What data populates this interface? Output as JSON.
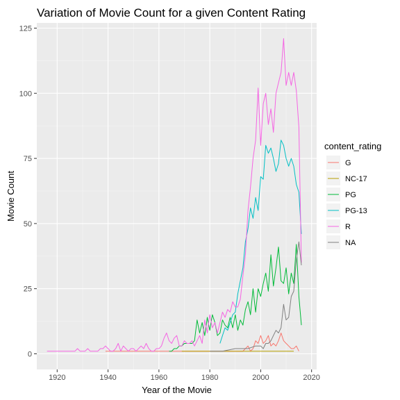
{
  "chart_data": {
    "type": "line",
    "title": "Variation of Movie Count for  a given Content Rating",
    "xlabel": "Year of the Movie",
    "ylabel": "Movie Count",
    "xlim": [
      1912,
      2022
    ],
    "ylim": [
      -6,
      127
    ],
    "x_ticks": [
      1920,
      1940,
      1960,
      1980,
      2000,
      2020
    ],
    "y_ticks": [
      0,
      25,
      50,
      75,
      100,
      125
    ],
    "grid": true,
    "legend": {
      "title": "content_rating",
      "placement": "right"
    },
    "series": [
      {
        "name": "G",
        "color": "#F8766D",
        "points": [
          [
            1939,
            1
          ],
          [
            1950,
            1
          ],
          [
            1960,
            1
          ],
          [
            1970,
            1
          ],
          [
            1977,
            1
          ],
          [
            1980,
            1
          ],
          [
            1985,
            1
          ],
          [
            1990,
            1
          ],
          [
            1993,
            1
          ],
          [
            1994,
            2
          ],
          [
            1995,
            3
          ],
          [
            1996,
            1
          ],
          [
            1997,
            2
          ],
          [
            1998,
            5
          ],
          [
            1999,
            4
          ],
          [
            2000,
            7
          ],
          [
            2001,
            4
          ],
          [
            2002,
            5
          ],
          [
            2003,
            7
          ],
          [
            2004,
            3
          ],
          [
            2005,
            4
          ],
          [
            2006,
            3
          ],
          [
            2007,
            5
          ],
          [
            2008,
            8
          ],
          [
            2009,
            5
          ],
          [
            2010,
            4
          ],
          [
            2011,
            3
          ],
          [
            2012,
            2
          ],
          [
            2013,
            2
          ],
          [
            2014,
            3
          ],
          [
            2015,
            1
          ]
        ]
      },
      {
        "name": "NC-17",
        "color": "#B79F00",
        "points": [
          [
            1969,
            1
          ],
          [
            1975,
            1
          ],
          [
            1990,
            1
          ],
          [
            1995,
            1
          ],
          [
            2000,
            1
          ],
          [
            2005,
            1
          ],
          [
            2010,
            1
          ],
          [
            2013,
            1
          ]
        ]
      },
      {
        "name": "PG",
        "color": "#00BA38",
        "points": [
          [
            1964,
            1
          ],
          [
            1965,
            1
          ],
          [
            1966,
            2
          ],
          [
            1967,
            2
          ],
          [
            1968,
            3
          ],
          [
            1969,
            3
          ],
          [
            1970,
            4
          ],
          [
            1971,
            4
          ],
          [
            1972,
            4
          ],
          [
            1973,
            4
          ],
          [
            1974,
            5
          ],
          [
            1975,
            13
          ],
          [
            1976,
            8
          ],
          [
            1977,
            12
          ],
          [
            1978,
            7
          ],
          [
            1979,
            14
          ],
          [
            1980,
            9
          ],
          [
            1981,
            15
          ],
          [
            1982,
            12
          ],
          [
            1983,
            7
          ],
          [
            1984,
            8
          ],
          [
            1985,
            13
          ],
          [
            1986,
            11
          ],
          [
            1987,
            10
          ],
          [
            1988,
            14
          ],
          [
            1989,
            10
          ],
          [
            1990,
            15
          ],
          [
            1991,
            9
          ],
          [
            1992,
            13
          ],
          [
            1993,
            11
          ],
          [
            1994,
            17
          ],
          [
            1995,
            20
          ],
          [
            1996,
            15
          ],
          [
            1997,
            25
          ],
          [
            1998,
            16
          ],
          [
            1999,
            25
          ],
          [
            2000,
            22
          ],
          [
            2001,
            27
          ],
          [
            2002,
            31
          ],
          [
            2003,
            24
          ],
          [
            2004,
            38
          ],
          [
            2005,
            26
          ],
          [
            2006,
            33
          ],
          [
            2007,
            41
          ],
          [
            2008,
            28
          ],
          [
            2009,
            27
          ],
          [
            2010,
            33
          ],
          [
            2011,
            23
          ],
          [
            2012,
            31
          ],
          [
            2013,
            27
          ],
          [
            2014,
            42
          ],
          [
            2015,
            22
          ],
          [
            2016,
            11
          ]
        ]
      },
      {
        "name": "PG-13",
        "color": "#00BFC4",
        "points": [
          [
            1984,
            4
          ],
          [
            1985,
            7
          ],
          [
            1986,
            10
          ],
          [
            1987,
            9
          ],
          [
            1988,
            12
          ],
          [
            1989,
            15
          ],
          [
            1990,
            16
          ],
          [
            1991,
            23
          ],
          [
            1992,
            28
          ],
          [
            1993,
            33
          ],
          [
            1994,
            43
          ],
          [
            1995,
            48
          ],
          [
            1996,
            56
          ],
          [
            1997,
            52
          ],
          [
            1998,
            60
          ],
          [
            1999,
            55
          ],
          [
            2000,
            68
          ],
          [
            2001,
            67
          ],
          [
            2002,
            80
          ],
          [
            2003,
            77
          ],
          [
            2004,
            79
          ],
          [
            2005,
            75
          ],
          [
            2006,
            70
          ],
          [
            2007,
            73
          ],
          [
            2008,
            82
          ],
          [
            2009,
            80
          ],
          [
            2010,
            75
          ],
          [
            2011,
            72
          ],
          [
            2012,
            75
          ],
          [
            2013,
            72
          ],
          [
            2014,
            65
          ],
          [
            2015,
            62
          ],
          [
            2016,
            46
          ]
        ]
      },
      {
        "name": "R",
        "color": "#F564E3",
        "points": [
          [
            1916,
            1
          ],
          [
            1920,
            1
          ],
          [
            1925,
            1
          ],
          [
            1927,
            1
          ],
          [
            1928,
            2
          ],
          [
            1929,
            1
          ],
          [
            1930,
            1
          ],
          [
            1931,
            1
          ],
          [
            1932,
            2
          ],
          [
            1933,
            1
          ],
          [
            1934,
            1
          ],
          [
            1935,
            1
          ],
          [
            1936,
            1
          ],
          [
            1937,
            2
          ],
          [
            1938,
            2
          ],
          [
            1939,
            3
          ],
          [
            1940,
            2
          ],
          [
            1941,
            1
          ],
          [
            1942,
            1
          ],
          [
            1943,
            2
          ],
          [
            1944,
            4
          ],
          [
            1945,
            1
          ],
          [
            1946,
            3
          ],
          [
            1947,
            2
          ],
          [
            1948,
            1
          ],
          [
            1949,
            2
          ],
          [
            1950,
            2
          ],
          [
            1951,
            1
          ],
          [
            1952,
            2
          ],
          [
            1953,
            3
          ],
          [
            1954,
            2
          ],
          [
            1955,
            4
          ],
          [
            1956,
            2
          ],
          [
            1957,
            1
          ],
          [
            1958,
            1
          ],
          [
            1959,
            2
          ],
          [
            1960,
            2
          ],
          [
            1961,
            3
          ],
          [
            1962,
            6
          ],
          [
            1963,
            8
          ],
          [
            1964,
            5
          ],
          [
            1965,
            4
          ],
          [
            1966,
            6
          ],
          [
            1967,
            7
          ],
          [
            1968,
            3
          ],
          [
            1969,
            3
          ],
          [
            1970,
            5
          ],
          [
            1971,
            4
          ],
          [
            1972,
            4
          ],
          [
            1973,
            5
          ],
          [
            1974,
            3
          ],
          [
            1975,
            5
          ],
          [
            1976,
            7
          ],
          [
            1977,
            4
          ],
          [
            1978,
            13
          ],
          [
            1979,
            8
          ],
          [
            1980,
            15
          ],
          [
            1981,
            10
          ],
          [
            1982,
            12
          ],
          [
            1983,
            8
          ],
          [
            1984,
            12
          ],
          [
            1985,
            16
          ],
          [
            1986,
            14
          ],
          [
            1987,
            17
          ],
          [
            1988,
            16
          ],
          [
            1989,
            20
          ],
          [
            1990,
            18
          ],
          [
            1991,
            18
          ],
          [
            1992,
            21
          ],
          [
            1993,
            30
          ],
          [
            1994,
            38
          ],
          [
            1995,
            55
          ],
          [
            1996,
            64
          ],
          [
            1997,
            75
          ],
          [
            1998,
            82
          ],
          [
            1999,
            102
          ],
          [
            2000,
            80
          ],
          [
            2001,
            96
          ],
          [
            2002,
            100
          ],
          [
            2003,
            88
          ],
          [
            2004,
            94
          ],
          [
            2005,
            85
          ],
          [
            2006,
            100
          ],
          [
            2007,
            104
          ],
          [
            2008,
            108
          ],
          [
            2009,
            121
          ],
          [
            2010,
            103
          ],
          [
            2011,
            108
          ],
          [
            2012,
            103
          ],
          [
            2013,
            108
          ],
          [
            2014,
            101
          ],
          [
            2015,
            87
          ],
          [
            2016,
            35
          ]
        ]
      },
      {
        "name": "NA",
        "color": "#7F7F7F",
        "points": [
          [
            1980,
            1
          ],
          [
            1985,
            1
          ],
          [
            1990,
            2
          ],
          [
            1995,
            2
          ],
          [
            1998,
            3
          ],
          [
            2000,
            3
          ],
          [
            2001,
            2
          ],
          [
            2002,
            4
          ],
          [
            2003,
            4
          ],
          [
            2004,
            5
          ],
          [
            2005,
            7
          ],
          [
            2006,
            9
          ],
          [
            2007,
            8
          ],
          [
            2008,
            10
          ],
          [
            2009,
            19
          ],
          [
            2010,
            13
          ],
          [
            2011,
            14
          ],
          [
            2012,
            22
          ],
          [
            2013,
            24
          ],
          [
            2014,
            36
          ],
          [
            2015,
            43
          ],
          [
            2016,
            34
          ]
        ]
      }
    ]
  }
}
